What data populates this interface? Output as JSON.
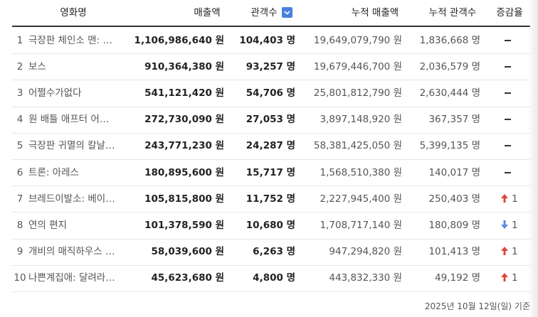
{
  "table": {
    "headers": [
      "영화명",
      "매출액",
      "관객수",
      "누적 매출액",
      "누적 관객수",
      "증감율"
    ],
    "rows": [
      {
        "rank": "1",
        "title": "극장판 체인소 맨: …",
        "sales": "1,106,986,640 원",
        "audience": "104,403 명",
        "cum_sales": "19,649,079,790 원",
        "cum_audience": "1,836,668 명",
        "change": {
          "trend": "flat"
        }
      },
      {
        "rank": "2",
        "title": "보스",
        "sales": "910,364,380 원",
        "audience": "93,257 명",
        "cum_sales": "19,679,446,700 원",
        "cum_audience": "2,036,579 명",
        "change": {
          "trend": "flat"
        }
      },
      {
        "rank": "3",
        "title": "어쩔수가없다",
        "sales": "541,121,420 원",
        "audience": "54,706 명",
        "cum_sales": "25,801,812,790 원",
        "cum_audience": "2,630,444 명",
        "change": {
          "trend": "flat"
        }
      },
      {
        "rank": "4",
        "title": "원 배틀 애프터 어…",
        "sales": "272,730,090 원",
        "audience": "27,053 명",
        "cum_sales": "3,897,148,920 원",
        "cum_audience": "367,357 명",
        "change": {
          "trend": "flat"
        }
      },
      {
        "rank": "5",
        "title": "극장판 귀멸의 칼날…",
        "sales": "243,771,230 원",
        "audience": "24,287 명",
        "cum_sales": "58,381,425,050 원",
        "cum_audience": "5,399,135 명",
        "change": {
          "trend": "flat"
        }
      },
      {
        "rank": "6",
        "title": "트론: 아레스",
        "sales": "180,895,600 원",
        "audience": "15,717 명",
        "cum_sales": "1,568,510,380 원",
        "cum_audience": "140,017 명",
        "change": {
          "trend": "flat"
        }
      },
      {
        "rank": "7",
        "title": "브레드이발소: 베이…",
        "sales": "105,815,800 원",
        "audience": "11,752 명",
        "cum_sales": "2,227,945,400 원",
        "cum_audience": "250,403 명",
        "change": {
          "trend": "up",
          "text": "1"
        }
      },
      {
        "rank": "8",
        "title": "연의 편지",
        "sales": "101,378,590 원",
        "audience": "10,680 명",
        "cum_sales": "1,708,717,140 원",
        "cum_audience": "180,809 명",
        "change": {
          "trend": "down",
          "text": "1"
        }
      },
      {
        "rank": "9",
        "title": "개비의 매직하우스 …",
        "sales": "58,039,600 원",
        "audience": "6,263 명",
        "cum_sales": "947,294,820 원",
        "cum_audience": "101,413 명",
        "change": {
          "trend": "up",
          "text": "1"
        }
      },
      {
        "rank": "10",
        "title": "나쁜계집애: 달려라…",
        "sales": "45,623,680 원",
        "audience": "4,800 명",
        "cum_sales": "443,832,330 원",
        "cum_audience": "49,192 명",
        "change": {
          "trend": "up",
          "text": "1"
        }
      }
    ],
    "footer": "2025년 10월 12일(일) 기준"
  }
}
